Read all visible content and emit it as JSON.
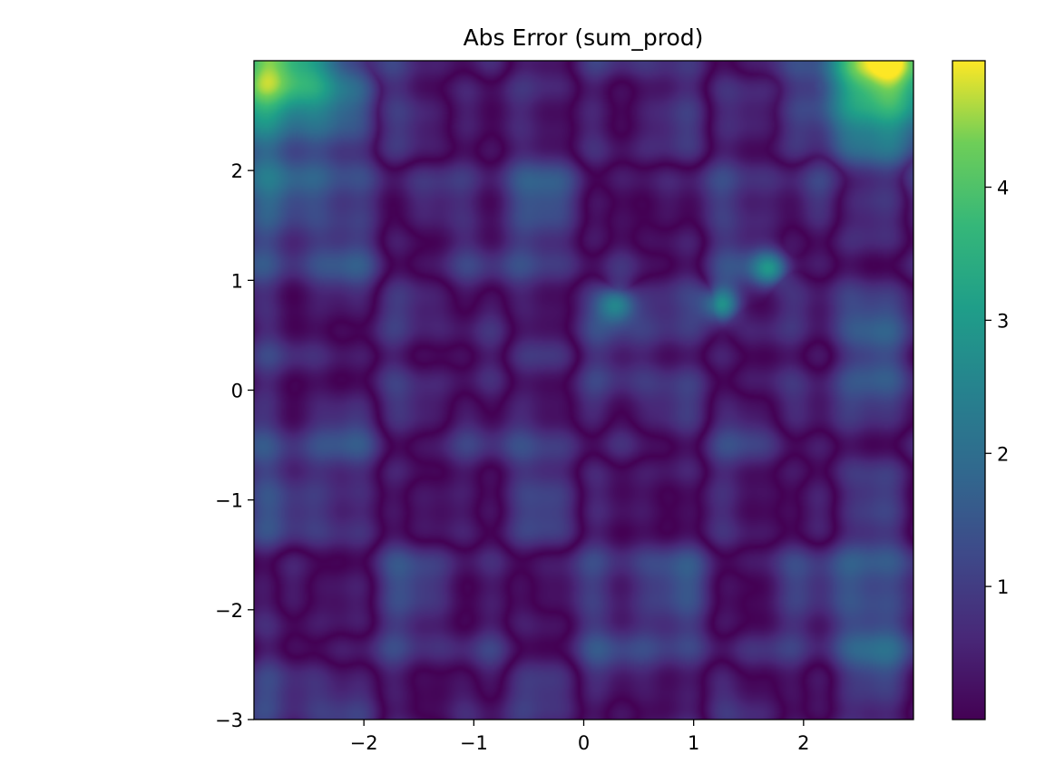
{
  "chart_data": {
    "type": "heatmap",
    "title": "Abs Error (sum_prod)",
    "xlabel": "",
    "ylabel": "",
    "xlim": [
      -3,
      3
    ],
    "ylim": [
      -3,
      3
    ],
    "x_ticks": [
      -2,
      -1,
      0,
      1,
      2
    ],
    "x_tick_labels": [
      "−2",
      "−1",
      "0",
      "1",
      "2"
    ],
    "y_ticks": [
      -3,
      -2,
      -1,
      0,
      1,
      2
    ],
    "y_tick_labels": [
      "−3",
      "−2",
      "−1",
      "0",
      "1",
      "2"
    ],
    "colormap": "viridis",
    "colorbar": {
      "range": [
        0,
        4.95
      ],
      "ticks": [
        1,
        2,
        3,
        4
      ],
      "tick_labels": [
        "1",
        "2",
        "3",
        "4"
      ]
    },
    "max_value": 4.95,
    "high_error_regions": [
      {
        "x": -2.8,
        "y": 2.9,
        "value": 4.8
      },
      {
        "x": 2.8,
        "y": 2.9,
        "value": 4.9
      },
      {
        "x": 0.3,
        "y": 0.78,
        "value": 3.2
      },
      {
        "x": 1.25,
        "y": 0.78,
        "value": 3.5
      },
      {
        "x": 1.7,
        "y": 1.1,
        "value": 3.0
      }
    ],
    "grid": false
  },
  "colors": {
    "viridis_low": "#440154",
    "viridis_mid": "#21918c",
    "viridis_high": "#fde725"
  }
}
